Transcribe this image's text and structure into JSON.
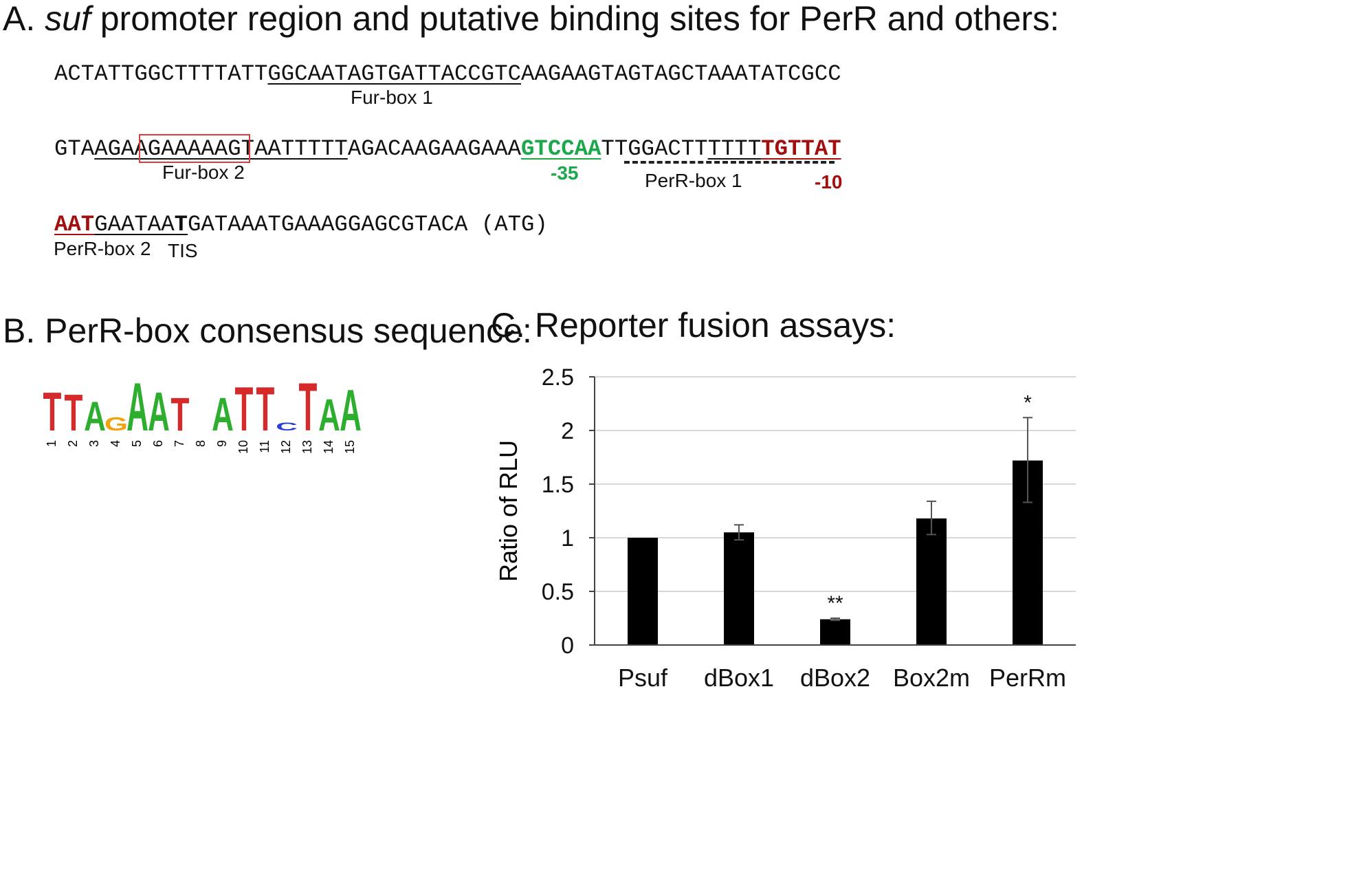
{
  "panelA": {
    "heading_prefix": "A. ",
    "heading_italic": "suf",
    "heading_rest": " promoter region and putative binding sites for PerR and others:",
    "line1": {
      "pre": "ACTATTGGCTTTTATT",
      "fur1": "GGCAATAGTGATTACCGTC",
      "post": "AAGAAGTAGTAGCTAAATATCGCC"
    },
    "fur_box1_label": "Fur-box 1",
    "line2": {
      "a": "GTA",
      "b": "AGA",
      "c": "AGAAAAAG",
      "d": "TAATTTTT",
      "e": "AGACAAGAAGAAA",
      "minus35": "GTCCAA",
      "f": "TTGGACTT",
      "g": "TTTT",
      "minus10": "TGTTAT"
    },
    "fur_box2_label": "Fur-box 2",
    "minus35_label": "-35",
    "perr_box1_label": "PerR-box 1",
    "minus10_label": "-10",
    "line3": {
      "aat": "AAT",
      "u1": "GAATAA",
      "tis": "T",
      "rest": "GATAAATGAAAGGAGCGTACA (ATG)"
    },
    "perr_box2_label": "PerR-box 2",
    "tis_label": "TIS"
  },
  "panelB": {
    "heading": "B. PerR-box consensus sequence:",
    "logo": {
      "colors": {
        "T": "#d42a2a",
        "A": "#2eae2e",
        "G": "#f2a20f",
        "C": "#2a3fd4"
      },
      "positions": [
        "1",
        "2",
        "3",
        "4",
        "5",
        "6",
        "7",
        "8",
        "9",
        "10",
        "11",
        "12",
        "13",
        "14",
        "15"
      ],
      "letters": [
        "T",
        "T",
        "A",
        "G",
        "A",
        "A",
        "T",
        "",
        "A",
        "T",
        "T",
        "C",
        "T",
        "A",
        "A"
      ]
    }
  },
  "panelC": {
    "heading": "C. Reporter fusion assays:"
  },
  "chart_data": {
    "type": "bar",
    "categories": [
      "Psuf",
      "dBox1",
      "dBox2",
      "Box2m",
      "PerRm"
    ],
    "values": [
      1.0,
      1.05,
      0.24,
      1.18,
      1.72
    ],
    "error_low": [
      1.0,
      0.98,
      0.23,
      1.03,
      1.33
    ],
    "error_high": [
      1.0,
      1.12,
      0.25,
      1.34,
      2.12
    ],
    "annotations": [
      "",
      "",
      "**",
      "",
      "*"
    ],
    "ylabel": "Ratio of RLU",
    "xlabel": "",
    "ylim": [
      0,
      2.5
    ],
    "yticks": [
      "0",
      "0.5",
      "1",
      "1.5",
      "2",
      "2.5"
    ],
    "grid": true,
    "bar_color": "#000000"
  }
}
